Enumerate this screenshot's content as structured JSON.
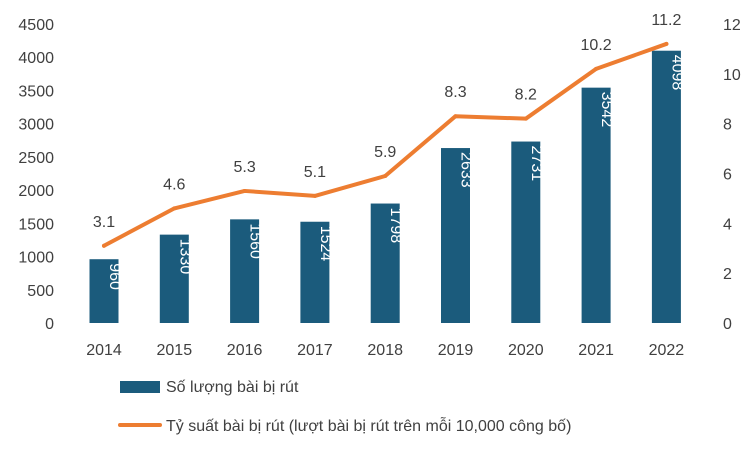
{
  "chart_data": {
    "type": "bar",
    "categories": [
      "2014",
      "2015",
      "2016",
      "2017",
      "2018",
      "2019",
      "2020",
      "2021",
      "2022"
    ],
    "series": [
      {
        "name": "Số lượng bài bị rút",
        "type": "bar",
        "axis": "left",
        "values": [
          960,
          1330,
          1560,
          1524,
          1798,
          2633,
          2731,
          3542,
          4098
        ],
        "labels": [
          "960",
          "1330",
          "1560",
          "1524",
          "1798",
          "2633",
          "2731",
          "3542",
          "4098"
        ]
      },
      {
        "name": "Tỷ suất bài bị rút (lượt bài bị rút trên mỗi 10,000 công bố)",
        "type": "line",
        "axis": "right",
        "values": [
          3.1,
          4.6,
          5.3,
          5.1,
          5.9,
          8.3,
          8.2,
          10.2,
          11.2
        ],
        "labels": [
          "3.1",
          "4.6",
          "5.3",
          "5.1",
          "5.9",
          "8.3",
          "8.2",
          "10.2",
          "11.2"
        ]
      }
    ],
    "y_left": {
      "range": [
        0,
        4500
      ],
      "ticks": [
        "0",
        "500",
        "1000",
        "1500",
        "2000",
        "2500",
        "3000",
        "3500",
        "4000",
        "4500"
      ]
    },
    "y_right": {
      "range": [
        0,
        12
      ],
      "ticks": [
        "0",
        "2",
        "4",
        "6",
        "8",
        "10",
        "12"
      ]
    },
    "legend_position": "bottom-left",
    "grid": false,
    "colors": {
      "bar": "#1b5b7c",
      "line": "#ed7d31",
      "text": "#404040",
      "bar_label": "#ffffff"
    }
  }
}
